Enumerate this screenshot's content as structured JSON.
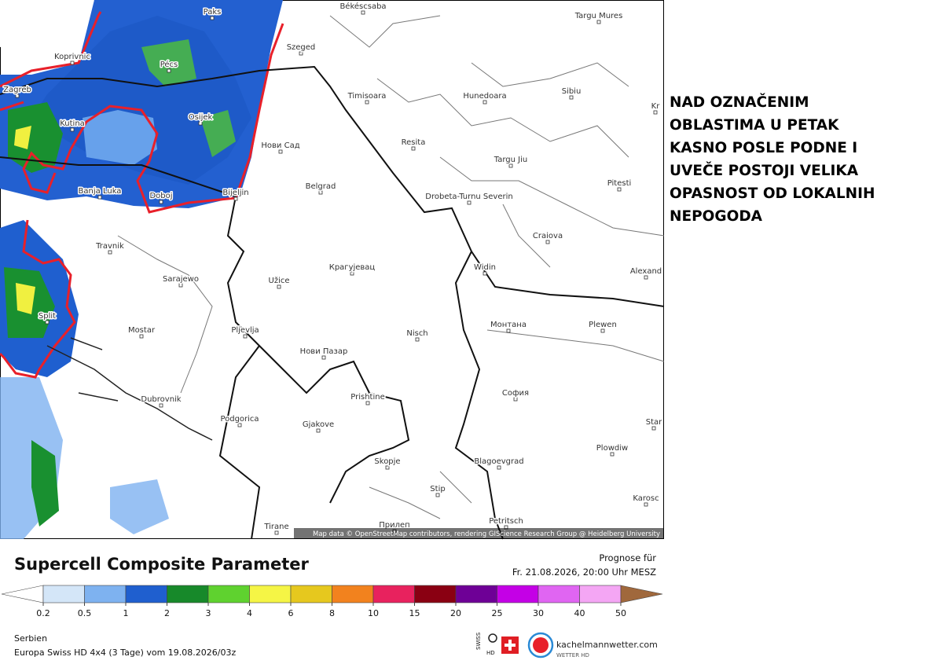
{
  "map": {
    "cities": [
      "Paks",
      "Békéscsaba",
      "Targu Mures",
      "Koprivnic",
      "Pécs",
      "Szeged",
      "Zagreb",
      "Timisoara",
      "Hunedoara",
      "Sibiu",
      "Kr",
      "Kutina",
      "Osijek",
      "Нови Сад",
      "Resita",
      "Targu Jiu",
      "Banja Luka",
      "Doboj",
      "Bijeljin",
      "Belgrad",
      "Drobeta-Turnu Severin",
      "Pitesti",
      "Craiova",
      "Travnik",
      "Sarajewo",
      "Užice",
      "Крагујевац",
      "Widin",
      "Alexand",
      "Split",
      "Mostar",
      "Pljevlja",
      "Nisch",
      "Монтана",
      "Plewen",
      "Нови Пазар",
      "Prishtine",
      "София",
      "Dubrovnik",
      "Podgorica",
      "Gjakove",
      "Star",
      "Plowdiw",
      "Skopje",
      "Blagoevgrad",
      "Stip",
      "Karosc",
      "Tirane",
      "Прилеп",
      "Petritsch"
    ],
    "attribution": "Map data © OpenStreetMap contributors, rendering GIScience Research Group @ Heidelberg University"
  },
  "note": [
    "NAD OZNAČENIM",
    "OBLASTIMA U PETAK",
    "KASNO POSLE PODNE I",
    "UVEČE POSTOJI VELIKA",
    "OPASNOST OD LOKALNIH",
    "NEPOGODA"
  ],
  "legend": {
    "title": "Supercell Composite Parameter",
    "forecast_label": "Prognose für",
    "forecast_time": "Fr. 21.08.2026, 20:00 Uhr MESZ",
    "ticks": [
      0.2,
      0.5,
      1,
      2,
      3,
      4,
      6,
      8,
      10,
      15,
      20,
      25,
      30,
      40,
      50
    ],
    "colors": [
      "#ffffff",
      "#d4e6f8",
      "#7eb2f0",
      "#1f5fcf",
      "#17892a",
      "#5fd22f",
      "#f5f545",
      "#e6c81e",
      "#f2821e",
      "#e8225e",
      "#8a0012",
      "#6e0096",
      "#c400e6",
      "#e065f2",
      "#f4a6f4",
      "#a0683c"
    ]
  },
  "footer": {
    "region": "Serbien",
    "model": "Europa Swiss HD 4x4 (3 Tage) vom 19.08.2026/03z",
    "swiss": "SWISS",
    "hd": "HD",
    "brand": "kachelmannwetter.com",
    "brand_sub": "WETTER HD"
  }
}
